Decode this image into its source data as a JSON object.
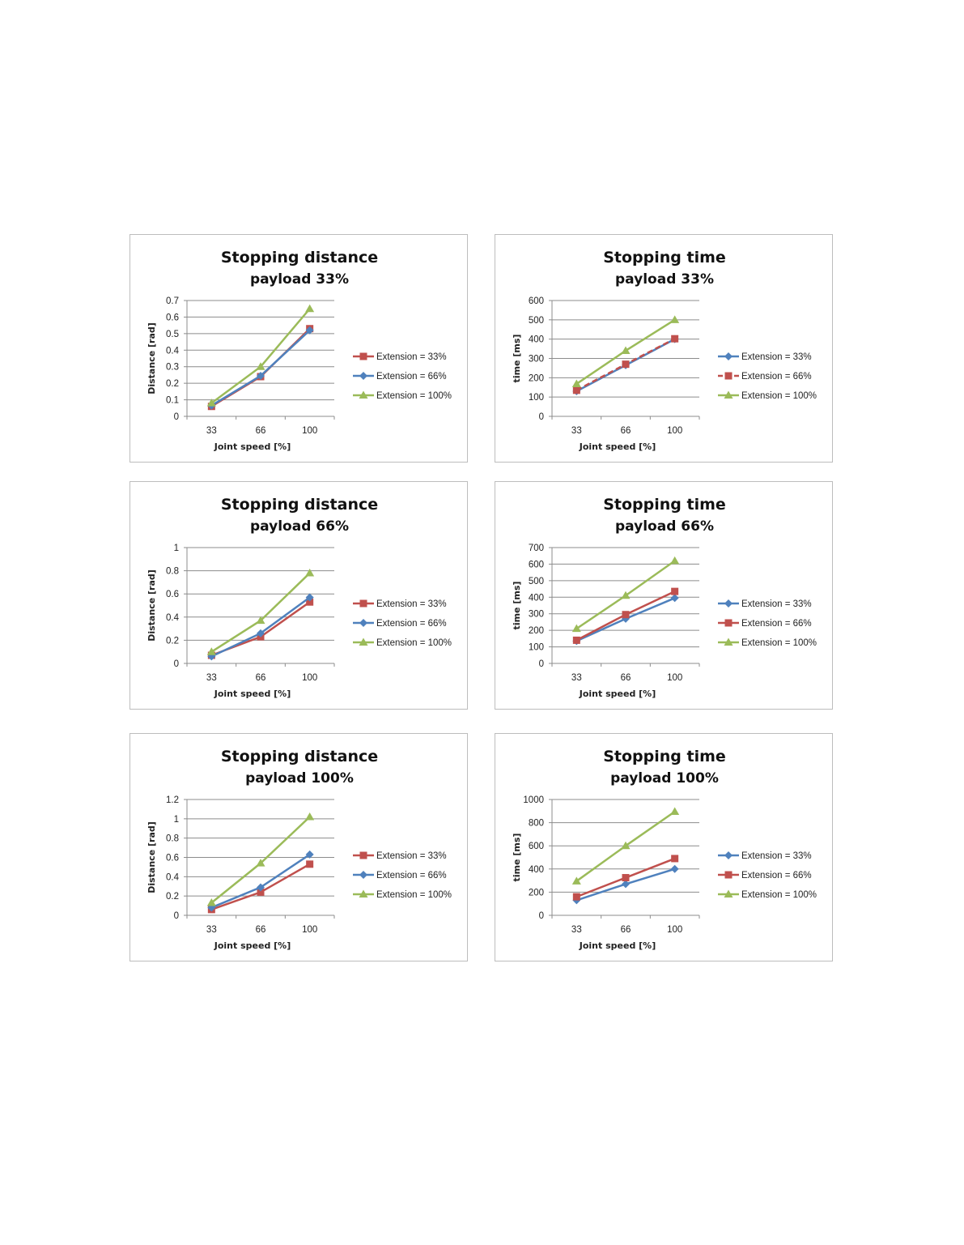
{
  "chart_data": [
    {
      "type": "line",
      "title": "Stopping distance",
      "subtitle": "payload 33%",
      "xlabel": "Joint speed [%]",
      "ylabel": "Distance [rad]",
      "categories": [
        "33",
        "66",
        "100"
      ],
      "ylim": [
        0,
        0.7
      ],
      "yticks": [
        "0",
        "0.1",
        "0.2",
        "0.3",
        "0.4",
        "0.5",
        "0.6",
        "0.7"
      ],
      "grid": true,
      "legend": "right",
      "series": [
        {
          "name": "Extension = 33%",
          "values": [
            0.06,
            0.24,
            0.53
          ],
          "color": "#c0504d",
          "marker": "square",
          "dash": false
        },
        {
          "name": "Extension = 66%",
          "values": [
            0.065,
            0.245,
            0.52
          ],
          "color": "#4f81bd",
          "marker": "diamond",
          "dash": false
        },
        {
          "name": "Extension = 100%",
          "values": [
            0.08,
            0.3,
            0.65
          ],
          "color": "#9bbb59",
          "marker": "triangle",
          "dash": false
        }
      ]
    },
    {
      "type": "line",
      "title": "Stopping time",
      "subtitle": "payload 33%",
      "xlabel": "Joint speed [%]",
      "ylabel": "time [ms]",
      "categories": [
        "33",
        "66",
        "100"
      ],
      "ylim": [
        0,
        600
      ],
      "yticks": [
        "0",
        "100",
        "200",
        "300",
        "400",
        "500",
        "600"
      ],
      "grid": true,
      "legend": "right",
      "series": [
        {
          "name": "Extension = 33%",
          "values": [
            130,
            265,
            400
          ],
          "color": "#4f81bd",
          "marker": "diamond",
          "dash": false
        },
        {
          "name": "Extension = 66%",
          "values": [
            135,
            270,
            402
          ],
          "color": "#c0504d",
          "marker": "square",
          "dash": true
        },
        {
          "name": "Extension = 100%",
          "values": [
            168,
            340,
            500
          ],
          "color": "#9bbb59",
          "marker": "triangle",
          "dash": false
        }
      ]
    },
    {
      "type": "line",
      "title": "Stopping distance",
      "subtitle": "payload 66%",
      "xlabel": "Joint speed [%]",
      "ylabel": "Distance [rad]",
      "categories": [
        "33",
        "66",
        "100"
      ],
      "ylim": [
        0,
        1
      ],
      "yticks": [
        "0",
        "0.2",
        "0.4",
        "0.6",
        "0.8",
        "1"
      ],
      "grid": true,
      "legend": "right",
      "series": [
        {
          "name": "Extension = 33%",
          "values": [
            0.07,
            0.23,
            0.53
          ],
          "color": "#c0504d",
          "marker": "square",
          "dash": false
        },
        {
          "name": "Extension = 66%",
          "values": [
            0.06,
            0.26,
            0.57
          ],
          "color": "#4f81bd",
          "marker": "diamond",
          "dash": false
        },
        {
          "name": "Extension = 100%",
          "values": [
            0.1,
            0.37,
            0.78
          ],
          "color": "#9bbb59",
          "marker": "triangle",
          "dash": false
        }
      ]
    },
    {
      "type": "line",
      "title": "Stopping time",
      "subtitle": "payload 66%",
      "xlabel": "Joint speed [%]",
      "ylabel": "time [ms]",
      "categories": [
        "33",
        "66",
        "100"
      ],
      "ylim": [
        0,
        700
      ],
      "yticks": [
        "0",
        "100",
        "200",
        "300",
        "400",
        "500",
        "600",
        "700"
      ],
      "grid": true,
      "legend": "right",
      "series": [
        {
          "name": "Extension = 33%",
          "values": [
            135,
            270,
            395
          ],
          "color": "#4f81bd",
          "marker": "diamond",
          "dash": false
        },
        {
          "name": "Extension = 66%",
          "values": [
            140,
            295,
            435
          ],
          "color": "#c0504d",
          "marker": "square",
          "dash": false
        },
        {
          "name": "Extension = 100%",
          "values": [
            210,
            410,
            620
          ],
          "color": "#9bbb59",
          "marker": "triangle",
          "dash": false
        }
      ]
    },
    {
      "type": "line",
      "title": "Stopping distance",
      "subtitle": "payload 100%",
      "xlabel": "Joint speed [%]",
      "ylabel": "Distance [rad]",
      "categories": [
        "33",
        "66",
        "100"
      ],
      "ylim": [
        0,
        1.2
      ],
      "yticks": [
        "0",
        "0.2",
        "0.4",
        "0.6",
        "0.8",
        "1",
        "1.2"
      ],
      "grid": true,
      "legend": "right",
      "series": [
        {
          "name": "Extension = 33%",
          "values": [
            0.06,
            0.24,
            0.53
          ],
          "color": "#c0504d",
          "marker": "square",
          "dash": false
        },
        {
          "name": "Extension = 66%",
          "values": [
            0.08,
            0.29,
            0.63
          ],
          "color": "#4f81bd",
          "marker": "diamond",
          "dash": false
        },
        {
          "name": "Extension = 100%",
          "values": [
            0.13,
            0.54,
            1.02
          ],
          "color": "#9bbb59",
          "marker": "triangle",
          "dash": false
        }
      ]
    },
    {
      "type": "line",
      "title": "Stopping time",
      "subtitle": "payload 100%",
      "xlabel": "Joint speed [%]",
      "ylabel": "time [ms]",
      "categories": [
        "33",
        "66",
        "100"
      ],
      "ylim": [
        0,
        1000
      ],
      "yticks": [
        "0",
        "200",
        "400",
        "600",
        "800",
        "1000"
      ],
      "grid": true,
      "legend": "right",
      "series": [
        {
          "name": "Extension = 33%",
          "values": [
            130,
            270,
            400
          ],
          "color": "#4f81bd",
          "marker": "diamond",
          "dash": false
        },
        {
          "name": "Extension = 66%",
          "values": [
            160,
            325,
            490
          ],
          "color": "#c0504d",
          "marker": "square",
          "dash": false
        },
        {
          "name": "Extension = 100%",
          "values": [
            295,
            600,
            895
          ],
          "color": "#9bbb59",
          "marker": "triangle",
          "dash": false
        }
      ]
    }
  ]
}
